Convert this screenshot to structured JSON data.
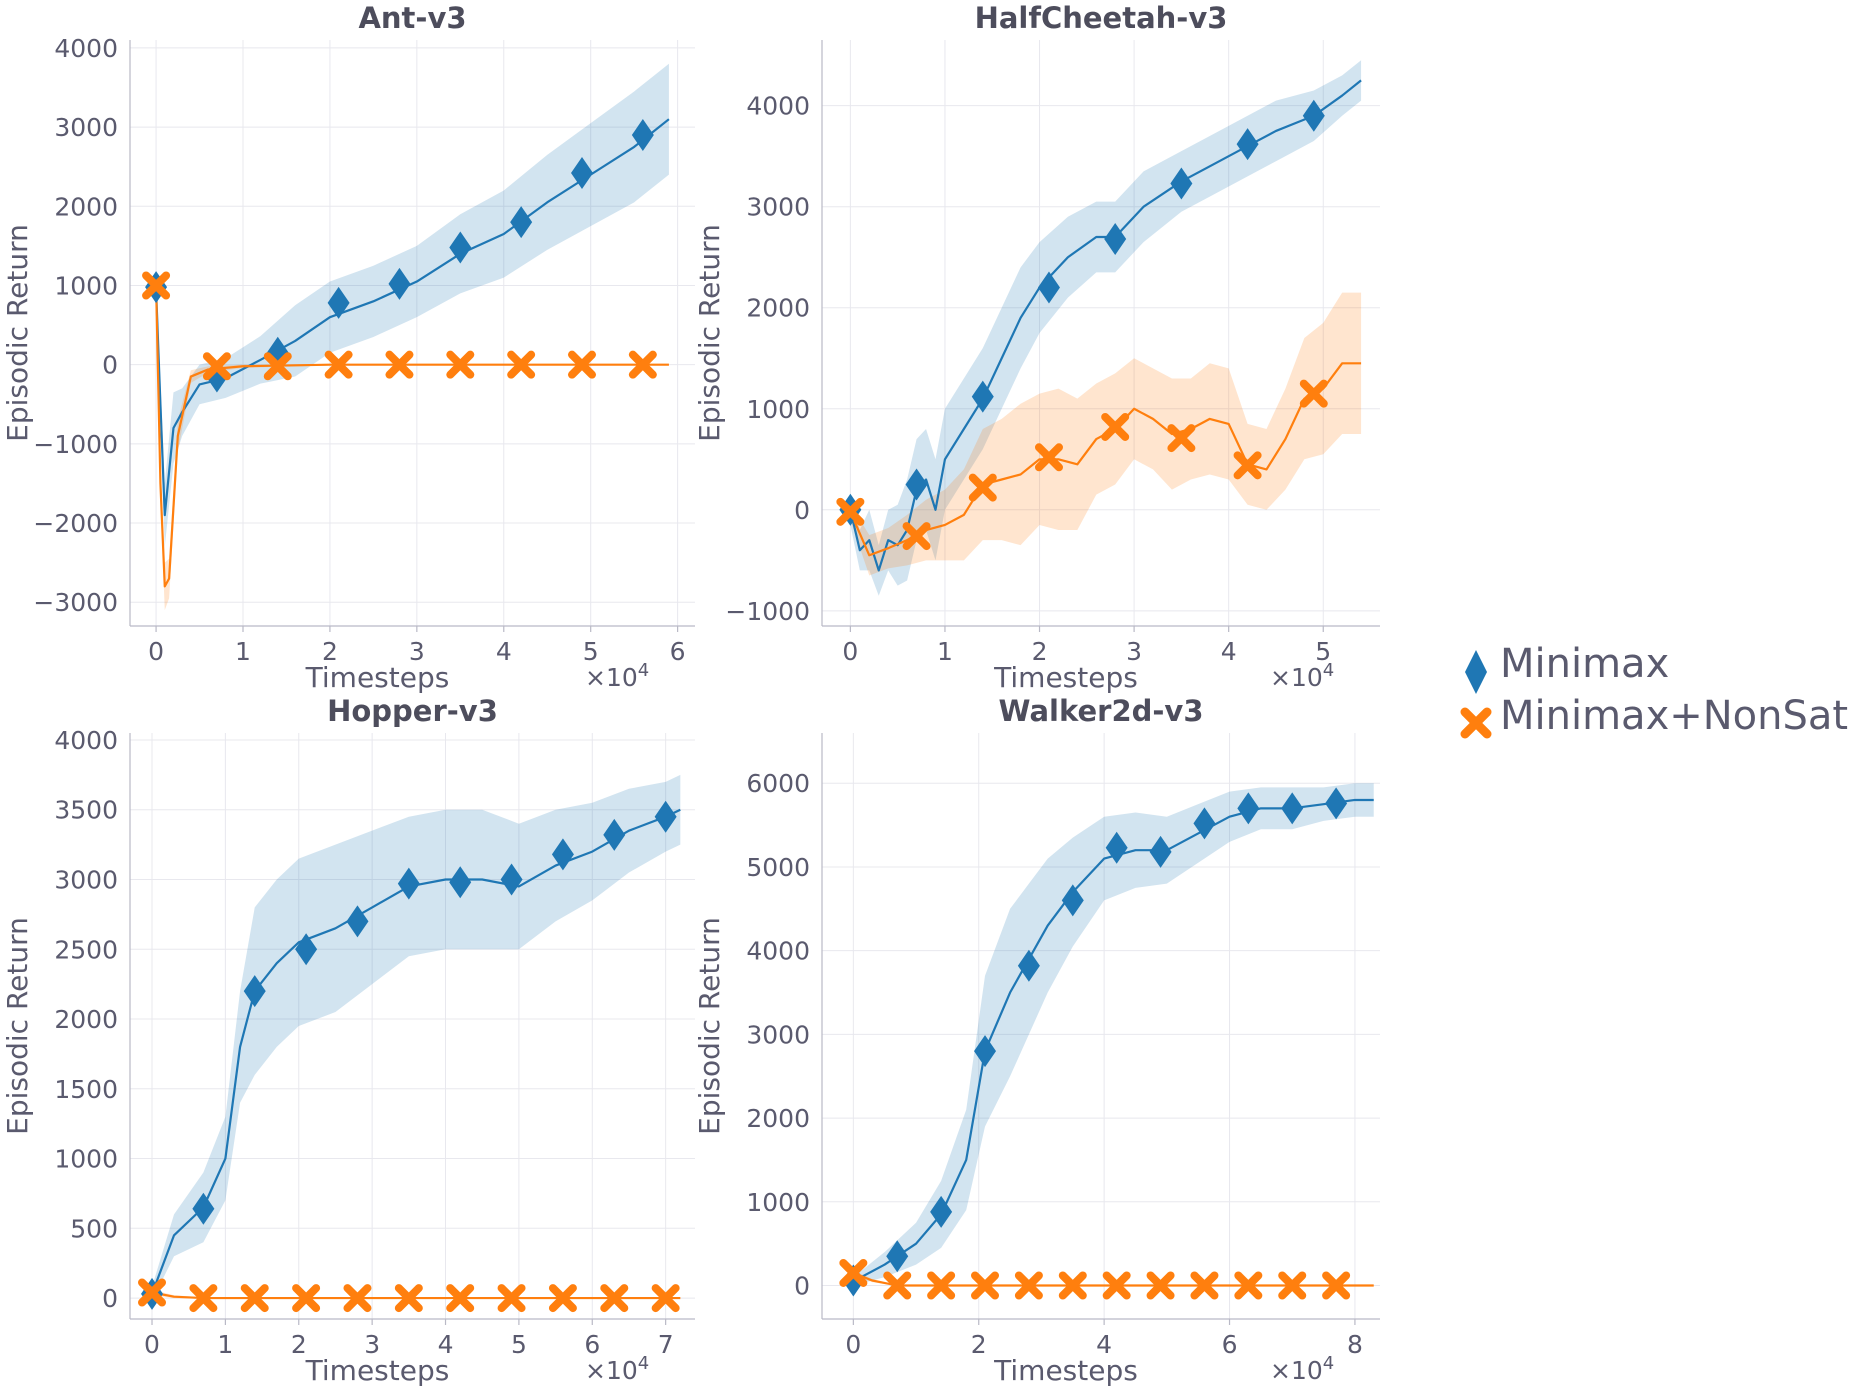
{
  "legend": {
    "items": [
      {
        "label": "Minimax",
        "color": "#1f77b4",
        "marker": "diamond"
      },
      {
        "label": "Minimax+NonSat",
        "color": "#ff7f0e",
        "marker": "x"
      }
    ]
  },
  "chart_data": [
    {
      "type": "line",
      "title": "Ant-v3",
      "xlabel": "Timesteps",
      "ylabel": "Episodic Return",
      "x_multiplier": "×10",
      "x_multiplier_exp": "4",
      "xlim": [
        -0.3,
        6.2
      ],
      "ylim": [
        -3300,
        4100
      ],
      "xticks": [
        0,
        1,
        2,
        3,
        4,
        5,
        6
      ],
      "yticks": [
        -3000,
        -2000,
        -1000,
        0,
        1000,
        2000,
        3000,
        4000
      ],
      "yticklabels": [
        "−3000",
        "−2000",
        "−1000",
        "0",
        "1000",
        "2000",
        "3000",
        "4000"
      ],
      "series": [
        {
          "name": "Minimax",
          "color": "#1f77b4",
          "x": [
            0,
            0.05,
            0.1,
            0.2,
            0.3,
            0.5,
            0.8,
            1.2,
            1.6,
            2.0,
            2.5,
            3.0,
            3.5,
            4.0,
            4.5,
            5.0,
            5.5,
            5.9
          ],
          "y": [
            950,
            -500,
            -1900,
            -800,
            -600,
            -250,
            -170,
            60,
            300,
            600,
            800,
            1050,
            1400,
            1650,
            2050,
            2400,
            2750,
            3100
          ],
          "band": [
            150,
            300,
            400,
            450,
            300,
            250,
            250,
            300,
            450,
            450,
            450,
            450,
            500,
            550,
            600,
            650,
            700,
            700
          ],
          "marker_x": [
            0,
            0.7,
            1.4,
            2.1,
            2.8,
            3.5,
            4.2,
            4.9,
            5.6
          ],
          "marker_y": [
            980,
            -150,
            150,
            780,
            1020,
            1480,
            1800,
            2420,
            2900
          ]
        },
        {
          "name": "Minimax+NonSat",
          "color": "#ff7f0e",
          "x": [
            0,
            0.05,
            0.1,
            0.15,
            0.25,
            0.4,
            0.6,
            1.0,
            2.0,
            3.0,
            4.0,
            5.0,
            5.9
          ],
          "y": [
            1000,
            -1500,
            -2800,
            -2700,
            -900,
            -150,
            -60,
            -20,
            0,
            0,
            0,
            0,
            0
          ],
          "band": [
            80,
            200,
            300,
            250,
            200,
            80,
            40,
            20,
            10,
            10,
            10,
            10,
            10
          ],
          "marker_x": [
            0,
            0.7,
            1.4,
            2.1,
            2.8,
            3.5,
            4.2,
            4.9,
            5.6
          ],
          "marker_y": [
            1000,
            -20,
            -20,
            0,
            0,
            0,
            0,
            0,
            0
          ]
        }
      ]
    },
    {
      "type": "line",
      "title": "HalfCheetah-v3",
      "xlabel": "Timesteps",
      "ylabel": "Episodic Return",
      "x_multiplier": "×10",
      "x_multiplier_exp": "4",
      "xlim": [
        -0.3,
        5.6
      ],
      "ylim": [
        -1150,
        4650
      ],
      "xticks": [
        0,
        1,
        2,
        3,
        4,
        5
      ],
      "yticks": [
        -1000,
        0,
        1000,
        2000,
        3000,
        4000
      ],
      "yticklabels": [
        "−1000",
        "0",
        "1000",
        "2000",
        "3000",
        "4000"
      ],
      "series": [
        {
          "name": "Minimax",
          "color": "#1f77b4",
          "x": [
            0,
            0.1,
            0.2,
            0.3,
            0.4,
            0.5,
            0.6,
            0.7,
            0.8,
            0.9,
            1.0,
            1.2,
            1.4,
            1.6,
            1.8,
            2.0,
            2.3,
            2.6,
            2.8,
            3.1,
            3.5,
            3.8,
            4.2,
            4.5,
            4.9,
            5.2,
            5.4
          ],
          "y": [
            0,
            -400,
            -300,
            -600,
            -300,
            -350,
            -200,
            200,
            300,
            0,
            500,
            800,
            1100,
            1500,
            1900,
            2200,
            2500,
            2700,
            2700,
            3000,
            3250,
            3400,
            3600,
            3750,
            3900,
            4100,
            4250
          ],
          "band": [
            150,
            200,
            300,
            250,
            300,
            400,
            500,
            500,
            500,
            500,
            500,
            500,
            500,
            500,
            500,
            450,
            400,
            350,
            350,
            350,
            300,
            300,
            300,
            300,
            250,
            200,
            200
          ],
          "marker_x": [
            0,
            0.7,
            1.4,
            2.1,
            2.8,
            3.5,
            4.2,
            4.9
          ],
          "marker_y": [
            0,
            250,
            1120,
            2200,
            2680,
            3230,
            3620,
            3900
          ]
        },
        {
          "name": "Minimax+NonSat",
          "color": "#ff7f0e",
          "x": [
            0,
            0.2,
            0.4,
            0.6,
            0.8,
            1.0,
            1.2,
            1.4,
            1.6,
            1.8,
            2.0,
            2.2,
            2.4,
            2.6,
            2.8,
            3.0,
            3.2,
            3.4,
            3.6,
            3.8,
            4.0,
            4.2,
            4.4,
            4.6,
            4.8,
            5.0,
            5.2,
            5.4
          ],
          "y": [
            -20,
            -450,
            -380,
            -300,
            -200,
            -150,
            -50,
            250,
            300,
            350,
            500,
            500,
            450,
            700,
            800,
            1000,
            900,
            750,
            800,
            900,
            850,
            450,
            400,
            700,
            1100,
            1200,
            1450,
            1450
          ],
          "band": [
            80,
            200,
            200,
            250,
            300,
            350,
            450,
            550,
            600,
            700,
            650,
            700,
            650,
            550,
            550,
            500,
            500,
            550,
            500,
            550,
            550,
            400,
            400,
            500,
            600,
            650,
            700,
            700
          ],
          "marker_x": [
            0,
            0.7,
            1.4,
            2.1,
            2.8,
            3.5,
            4.2,
            4.9
          ],
          "marker_y": [
            -20,
            -260,
            220,
            520,
            820,
            710,
            440,
            1150
          ]
        }
      ]
    },
    {
      "type": "line",
      "title": "Hopper-v3",
      "xlabel": "Timesteps",
      "ylabel": "Episodic Return",
      "x_multiplier": "×10",
      "x_multiplier_exp": "4",
      "xlim": [
        -0.3,
        7.4
      ],
      "ylim": [
        -150,
        4050
      ],
      "xticks": [
        0,
        1,
        2,
        3,
        4,
        5,
        6,
        7
      ],
      "yticks": [
        0,
        500,
        1000,
        1500,
        2000,
        2500,
        3000,
        3500,
        4000
      ],
      "yticklabels": [
        "0",
        "500",
        "1000",
        "1500",
        "2000",
        "2500",
        "3000",
        "3500",
        "4000"
      ],
      "series": [
        {
          "name": "Minimax",
          "color": "#1f77b4",
          "x": [
            0,
            0.3,
            0.7,
            1.0,
            1.2,
            1.4,
            1.7,
            2.0,
            2.5,
            3.0,
            3.5,
            4.0,
            4.5,
            5.0,
            5.5,
            6.0,
            6.5,
            7.0,
            7.2
          ],
          "y": [
            30,
            450,
            650,
            1000,
            1800,
            2200,
            2400,
            2550,
            2650,
            2800,
            2950,
            3000,
            3000,
            2950,
            3100,
            3200,
            3350,
            3450,
            3500
          ],
          "band": [
            50,
            150,
            250,
            300,
            400,
            600,
            600,
            600,
            600,
            550,
            500,
            500,
            500,
            450,
            400,
            350,
            300,
            250,
            250
          ],
          "marker_x": [
            0,
            0.7,
            1.4,
            2.1,
            2.8,
            3.5,
            4.2,
            4.9,
            5.6,
            6.3,
            7.0
          ],
          "marker_y": [
            30,
            640,
            2200,
            2500,
            2700,
            2970,
            2980,
            3000,
            3180,
            3320,
            3450
          ]
        },
        {
          "name": "Minimax+NonSat",
          "color": "#ff7f0e",
          "x": [
            0,
            0.3,
            0.7,
            1.0,
            2.0,
            3.0,
            4.0,
            5.0,
            6.0,
            7.0,
            7.2
          ],
          "y": [
            40,
            10,
            0,
            0,
            0,
            0,
            0,
            0,
            0,
            0,
            0
          ],
          "band": [
            20,
            10,
            5,
            5,
            5,
            5,
            5,
            5,
            5,
            5,
            5
          ],
          "marker_x": [
            0,
            0.7,
            1.4,
            2.1,
            2.8,
            3.5,
            4.2,
            4.9,
            5.6,
            6.3,
            7.0
          ],
          "marker_y": [
            40,
            0,
            0,
            0,
            0,
            0,
            0,
            0,
            0,
            0,
            0
          ]
        }
      ]
    },
    {
      "type": "line",
      "title": "Walker2d-v3",
      "xlabel": "Timesteps",
      "ylabel": "Episodic Return",
      "x_multiplier": "×10",
      "x_multiplier_exp": "4",
      "xlim": [
        -0.5,
        8.4
      ],
      "ylim": [
        -400,
        6600
      ],
      "xticks": [
        0,
        2,
        4,
        6,
        8
      ],
      "yticks": [
        0,
        1000,
        2000,
        3000,
        4000,
        5000,
        6000
      ],
      "yticklabels": [
        "0",
        "1000",
        "2000",
        "3000",
        "4000",
        "5000",
        "6000"
      ],
      "series": [
        {
          "name": "Minimax",
          "color": "#1f77b4",
          "x": [
            0,
            0.5,
            1.0,
            1.4,
            1.8,
            2.1,
            2.5,
            2.8,
            3.1,
            3.5,
            4.0,
            4.5,
            5.0,
            5.5,
            6.0,
            6.5,
            7.0,
            7.5,
            8.0,
            8.3
          ],
          "y": [
            50,
            250,
            500,
            850,
            1500,
            2800,
            3500,
            3900,
            4300,
            4700,
            5100,
            5200,
            5200,
            5400,
            5600,
            5700,
            5700,
            5750,
            5800,
            5800
          ],
          "band": [
            50,
            150,
            250,
            400,
            600,
            900,
            1000,
            900,
            800,
            650,
            500,
            450,
            400,
            350,
            300,
            250,
            250,
            200,
            200,
            200
          ],
          "marker_x": [
            0,
            0.7,
            1.4,
            2.1,
            2.8,
            3.5,
            4.2,
            4.9,
            5.6,
            6.3,
            7.0,
            7.7
          ],
          "marker_y": [
            60,
            350,
            880,
            2800,
            3820,
            4600,
            5230,
            5180,
            5520,
            5700,
            5700,
            5760
          ]
        },
        {
          "name": "Minimax+NonSat",
          "color": "#ff7f0e",
          "x": [
            0,
            0.3,
            0.7,
            1.0,
            2.0,
            3.0,
            4.0,
            5.0,
            6.0,
            7.0,
            8.0,
            8.3
          ],
          "y": [
            150,
            60,
            0,
            0,
            0,
            0,
            0,
            0,
            0,
            0,
            0,
            0
          ],
          "band": [
            30,
            20,
            5,
            5,
            5,
            5,
            5,
            5,
            5,
            5,
            5,
            5
          ],
          "marker_x": [
            0,
            0.7,
            1.4,
            2.1,
            2.8,
            3.5,
            4.2,
            4.9,
            5.6,
            6.3,
            7.0,
            7.7
          ],
          "marker_y": [
            150,
            0,
            0,
            0,
            0,
            0,
            0,
            0,
            0,
            0,
            0,
            0
          ]
        }
      ]
    }
  ]
}
